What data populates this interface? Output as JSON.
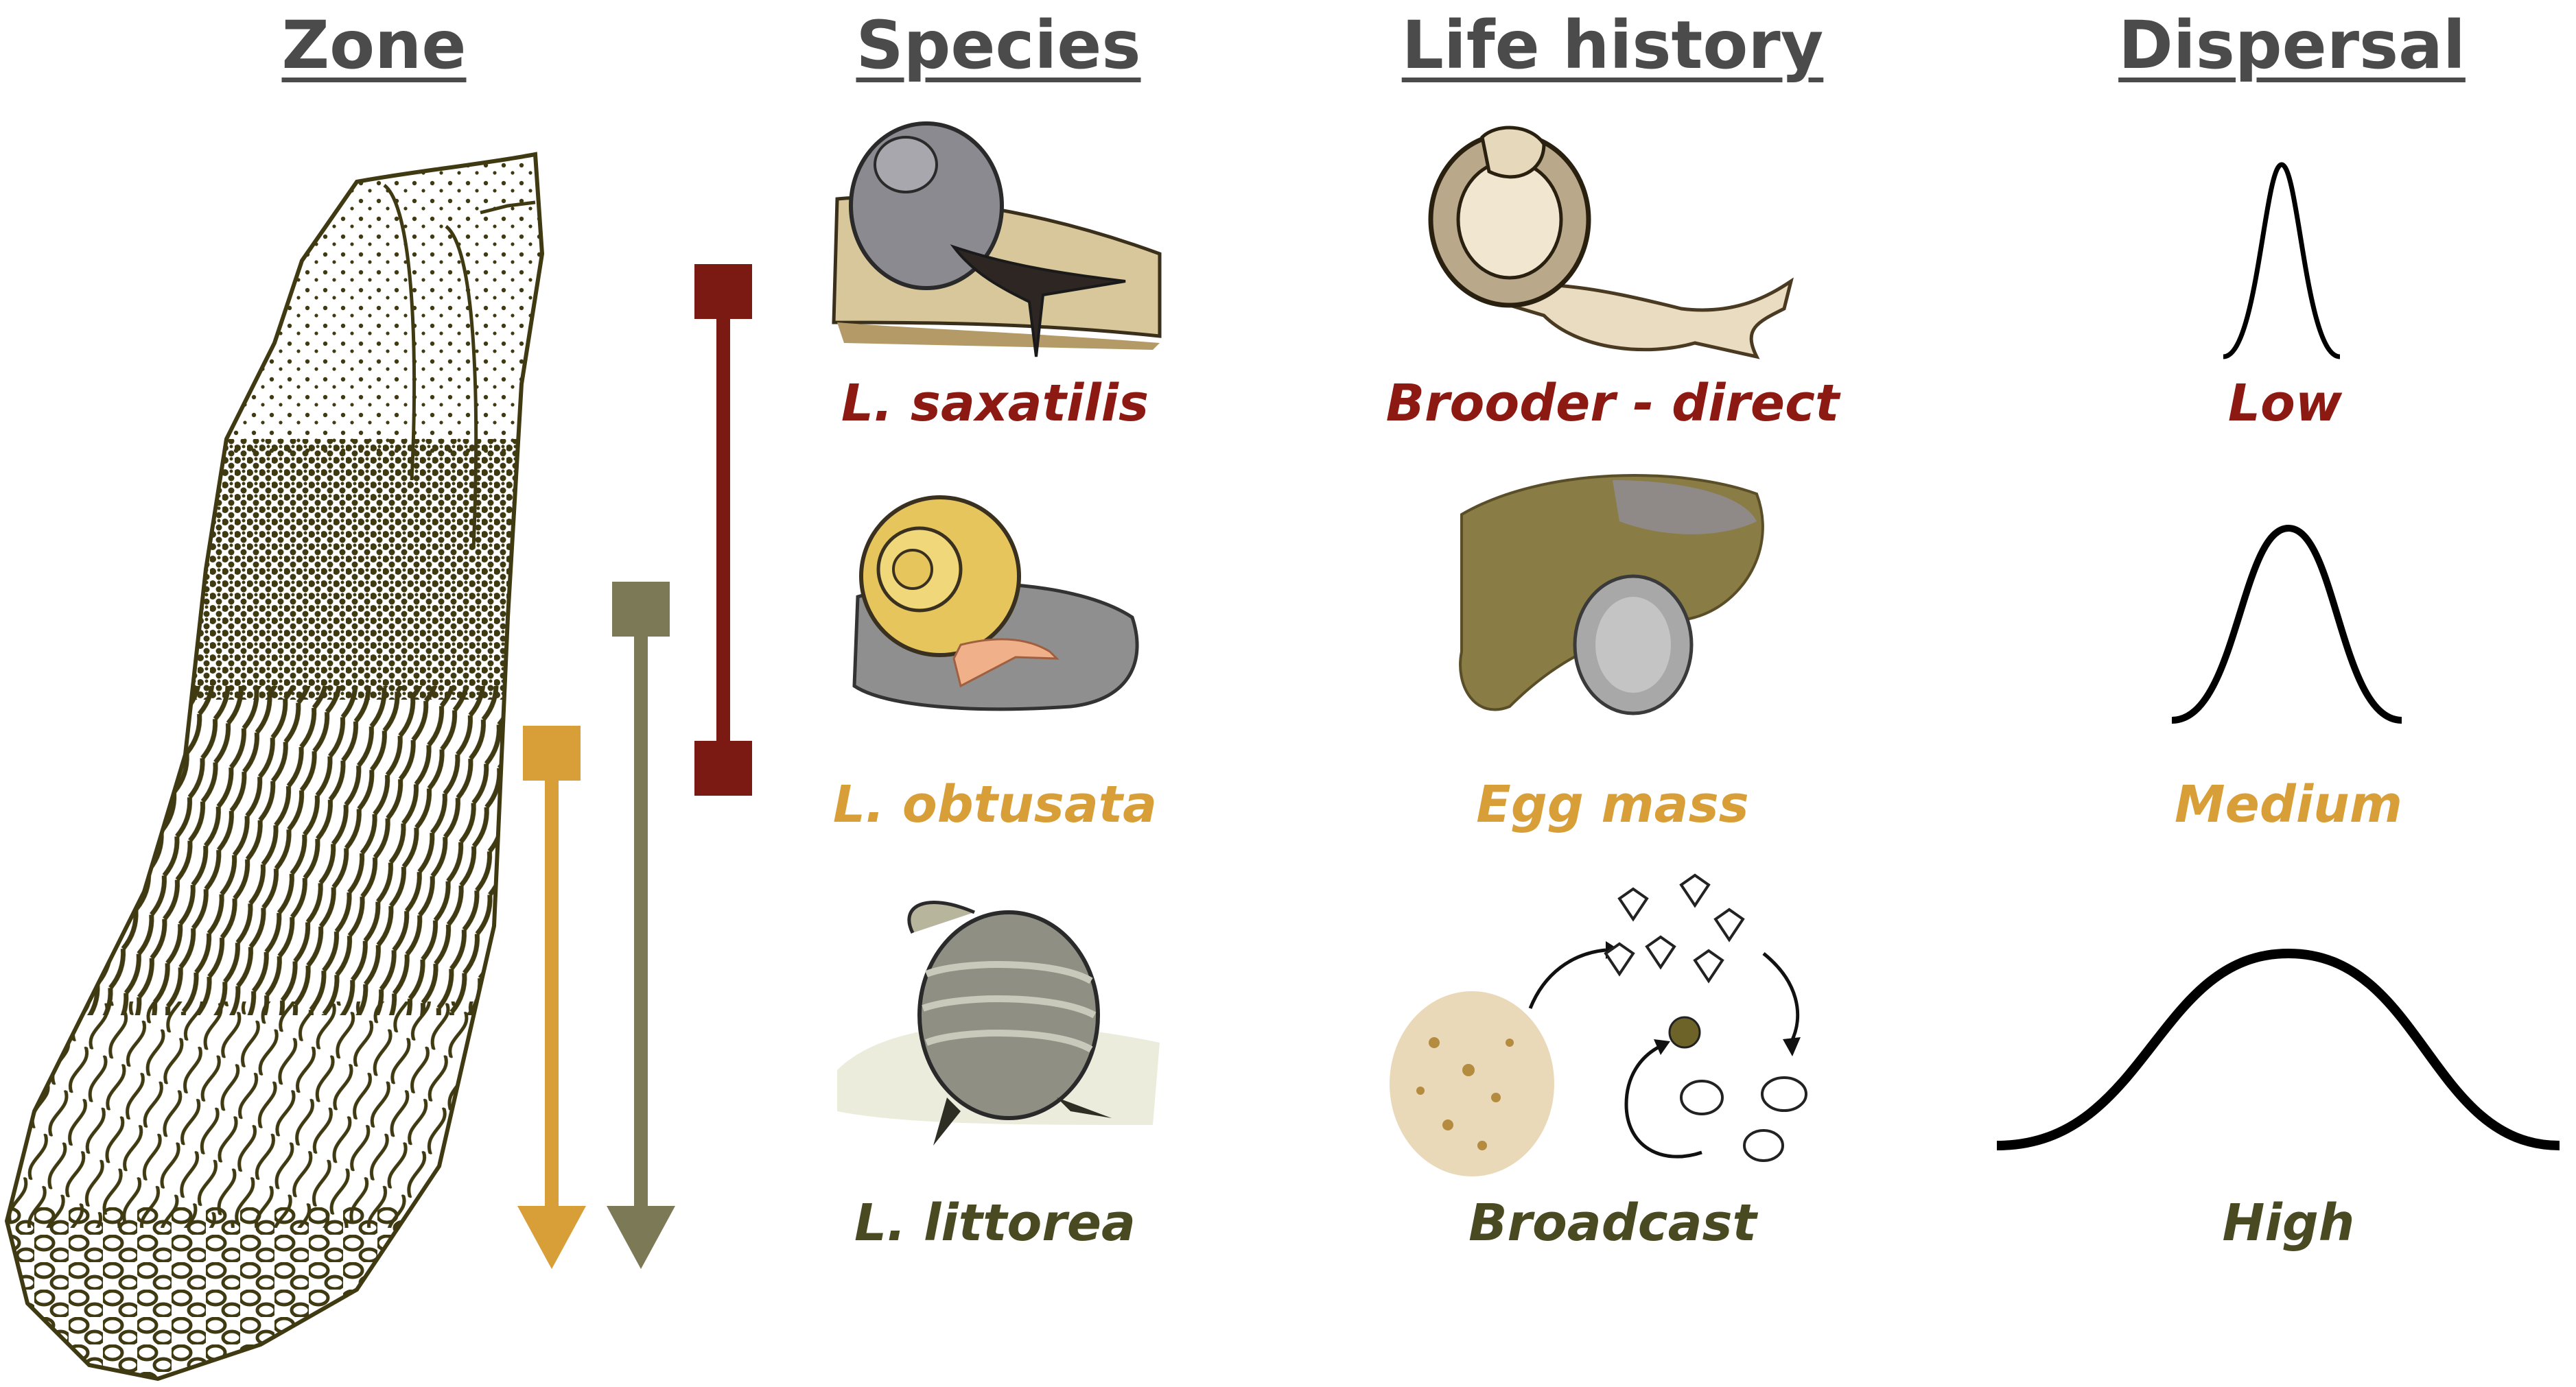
{
  "headers": {
    "zone": "Zone",
    "species": "Species",
    "life_history": "Life history",
    "dispersal": "Dispersal"
  },
  "rows": [
    {
      "species": "L. saxatilis",
      "life_history": "Brooder - direct",
      "dispersal": "Low",
      "color": "#8c1a12"
    },
    {
      "species": "L. obtusata",
      "life_history": "Egg mass",
      "dispersal": "Medium",
      "color": "#d89e38"
    },
    {
      "species": "L. littorea",
      "life_history": "Broadcast",
      "dispersal": "High",
      "color": "#4a4a22"
    }
  ],
  "colors": {
    "header_text": "#4b4b4b",
    "saxatilis_bar": "#7a1a12",
    "obtusata_arrow": "#d89e38",
    "littorea_arrow": "#7c7a56",
    "zone_ink": "#3f3a12"
  },
  "icons": {
    "zone": "intertidal-zone-sketch",
    "snail_1": "snail-illustration",
    "snail_2": "snail-illustration",
    "snail_3": "snail-illustration",
    "brooder": "brooding-snail-icon",
    "egg_mass": "egg-mass-icon",
    "broadcast": "larval-cycle-icon"
  }
}
